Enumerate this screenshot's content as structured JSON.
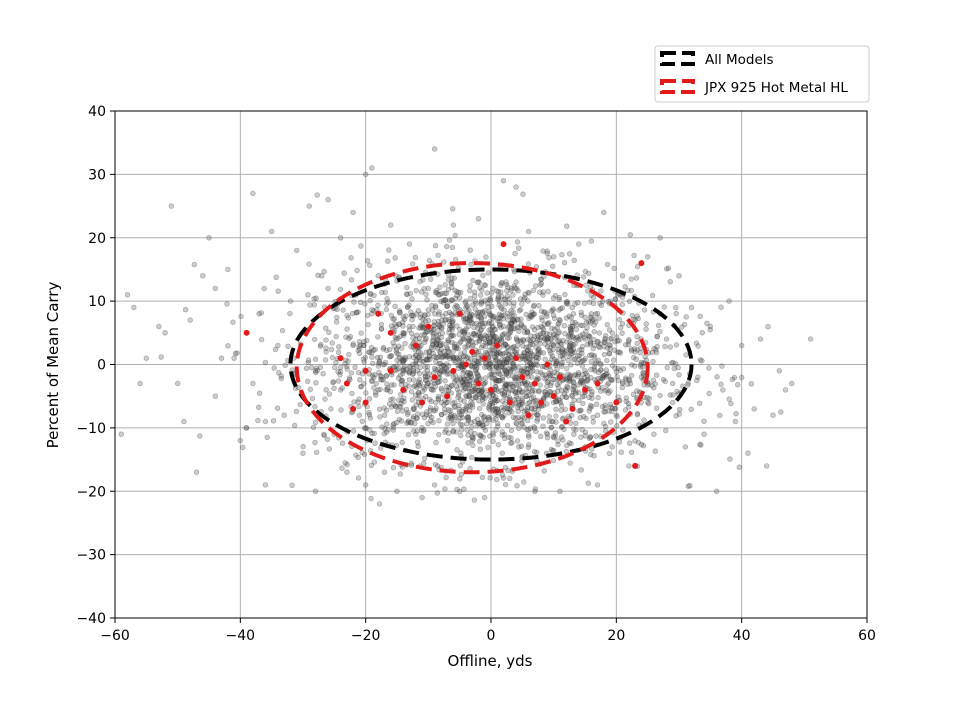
{
  "chart_data": {
    "type": "scatter",
    "xlabel": "Offline, yds",
    "ylabel": "Percent of Mean Carry",
    "xlim": [
      -60,
      60
    ],
    "ylim": [
      -40,
      40
    ],
    "xticks": [
      -60,
      -40,
      -20,
      0,
      20,
      40,
      60
    ],
    "yticks": [
      -40,
      -30,
      -20,
      -10,
      0,
      10,
      20,
      30,
      40
    ],
    "xtick_labels": [
      "−60",
      "−40",
      "−20",
      "0",
      "20",
      "40",
      "60"
    ],
    "ytick_labels": [
      "−40",
      "−30",
      "−20",
      "−10",
      "0",
      "10",
      "20",
      "30",
      "40"
    ],
    "grid": true,
    "legend_position": "upper-right, above plot",
    "series": [
      {
        "name": "All Models",
        "color": "#000000",
        "points_color": "#555555",
        "marker_alpha": 0.3,
        "ellipse": {
          "cx": 0,
          "cy": 0,
          "rx": 32,
          "ry": 15
        },
        "sample_points": [
          [
            -58,
            11
          ],
          [
            -57,
            9
          ],
          [
            -56,
            -3
          ],
          [
            -53,
            6
          ],
          [
            -51,
            25
          ],
          [
            -50,
            -3
          ],
          [
            -48,
            7
          ],
          [
            -47,
            -17
          ],
          [
            -46,
            14
          ],
          [
            -45,
            20
          ],
          [
            -44,
            -5
          ],
          [
            -44,
            12
          ],
          [
            -42,
            15
          ],
          [
            -41,
            1
          ],
          [
            -40,
            -12
          ],
          [
            -38,
            -3
          ],
          [
            -38,
            27
          ],
          [
            -37,
            8
          ],
          [
            -36,
            -19
          ],
          [
            -35,
            21
          ],
          [
            -34,
            3
          ],
          [
            -33,
            -8
          ],
          [
            -31,
            18
          ],
          [
            -30,
            -14
          ],
          [
            -29,
            25
          ],
          [
            -28,
            -20
          ],
          [
            -27,
            14
          ],
          [
            -26,
            26
          ],
          [
            -25,
            -11
          ],
          [
            -24,
            20
          ],
          [
            -23,
            -17
          ],
          [
            -22,
            3
          ],
          [
            -22,
            24
          ],
          [
            -21,
            -8
          ],
          [
            -20,
            30
          ],
          [
            -20,
            -19
          ],
          [
            -19,
            31
          ],
          [
            -18,
            14
          ],
          [
            -18,
            -4
          ],
          [
            -17,
            -17
          ],
          [
            -16,
            22
          ],
          [
            -15,
            -20
          ],
          [
            -14,
            5
          ],
          [
            -13,
            19
          ],
          [
            -12,
            -11
          ],
          [
            -11,
            -21
          ],
          [
            -10,
            12
          ],
          [
            -9,
            34
          ],
          [
            -9,
            -19
          ],
          [
            -8,
            3
          ],
          [
            -7,
            -6
          ],
          [
            -6,
            22
          ],
          [
            -5,
            -20
          ],
          [
            -4,
            9
          ],
          [
            -3,
            -12
          ],
          [
            -2,
            23
          ],
          [
            -1,
            -21
          ],
          [
            0,
            5
          ],
          [
            1,
            -8
          ],
          [
            2,
            29
          ],
          [
            3,
            -18
          ],
          [
            4,
            28
          ],
          [
            4,
            13
          ],
          [
            5,
            -3
          ],
          [
            6,
            21
          ],
          [
            7,
            -20
          ],
          [
            8,
            6
          ],
          [
            9,
            -11
          ],
          [
            10,
            17
          ],
          [
            11,
            -20
          ],
          [
            12,
            2
          ],
          [
            13,
            -5
          ],
          [
            14,
            19
          ],
          [
            15,
            -13
          ],
          [
            16,
            8
          ],
          [
            17,
            -19
          ],
          [
            18,
            24
          ],
          [
            19,
            3
          ],
          [
            20,
            -8
          ],
          [
            21,
            14
          ],
          [
            22,
            -16
          ],
          [
            23,
            7
          ],
          [
            24,
            -2
          ],
          [
            25,
            17
          ],
          [
            26,
            -11
          ],
          [
            27,
            20
          ],
          [
            28,
            4
          ],
          [
            29,
            -6
          ],
          [
            30,
            14
          ],
          [
            31,
            -13
          ],
          [
            32,
            9
          ],
          [
            33,
            -2
          ],
          [
            34,
            -11
          ],
          [
            35,
            6
          ],
          [
            36,
            -20
          ],
          [
            37,
            -4
          ],
          [
            38,
            10
          ],
          [
            39,
            -9
          ],
          [
            40,
            3
          ],
          [
            41,
            -14
          ],
          [
            42,
            -7
          ],
          [
            43,
            4
          ],
          [
            44,
            -16
          ],
          [
            45,
            -8
          ],
          [
            46,
            -1
          ],
          [
            47,
            -4
          ],
          [
            48,
            -3
          ],
          [
            51,
            4
          ],
          [
            -59,
            -11
          ],
          [
            -55,
            1
          ],
          [
            -52,
            5
          ],
          [
            -49,
            -9
          ],
          [
            -43,
            1
          ],
          [
            -39,
            -10
          ],
          [
            -36,
            -9
          ],
          [
            -32,
            10
          ],
          [
            -28,
            -1
          ],
          [
            -26,
            12
          ],
          [
            -24,
            -4
          ],
          [
            -19,
            8
          ],
          [
            -17,
            0
          ],
          [
            -12,
            4
          ],
          [
            -10,
            -3
          ],
          [
            -6,
            1
          ],
          [
            -4,
            -7
          ],
          [
            -2,
            2
          ],
          [
            0,
            -2
          ],
          [
            2,
            6
          ],
          [
            3,
            -4
          ],
          [
            5,
            1
          ],
          [
            7,
            -7
          ],
          [
            9,
            4
          ],
          [
            11,
            -2
          ],
          [
            13,
            6
          ],
          [
            15,
            -1
          ],
          [
            17,
            -8
          ],
          [
            19,
            10
          ],
          [
            21,
            -3
          ],
          [
            23,
            2
          ],
          [
            25,
            -6
          ],
          [
            27,
            8
          ],
          [
            29,
            -3
          ]
        ]
      },
      {
        "name": "JPX 925 Hot Metal HL",
        "color": "#e31a1a",
        "points_color": "#e31a1a",
        "marker_alpha": 1,
        "ellipse": {
          "cx": -3,
          "cy": -0.5,
          "rx": 28,
          "ry": 16.5
        },
        "points": [
          [
            -39,
            5
          ],
          [
            -24,
            1
          ],
          [
            -23,
            -3
          ],
          [
            -22,
            -7
          ],
          [
            -20,
            -6
          ],
          [
            -18,
            8
          ],
          [
            -16,
            5
          ],
          [
            -16,
            -1
          ],
          [
            -14,
            -4
          ],
          [
            -12,
            3
          ],
          [
            -11,
            -6
          ],
          [
            -10,
            6
          ],
          [
            -9,
            -2
          ],
          [
            -7,
            -5
          ],
          [
            -5,
            8
          ],
          [
            -4,
            0
          ],
          [
            -3,
            2
          ],
          [
            -2,
            -3
          ],
          [
            -1,
            1
          ],
          [
            0,
            -4
          ],
          [
            1,
            3
          ],
          [
            2,
            19
          ],
          [
            3,
            -6
          ],
          [
            4,
            1
          ],
          [
            5,
            -2
          ],
          [
            6,
            -8
          ],
          [
            7,
            -3
          ],
          [
            8,
            -6
          ],
          [
            9,
            0
          ],
          [
            10,
            -5
          ],
          [
            11,
            -2
          ],
          [
            12,
            -9
          ],
          [
            13,
            -7
          ],
          [
            15,
            -4
          ],
          [
            17,
            -3
          ],
          [
            20,
            -6
          ],
          [
            23,
            -16
          ],
          [
            24,
            16
          ],
          [
            -20,
            -1
          ],
          [
            -6,
            -1
          ]
        ]
      }
    ]
  }
}
